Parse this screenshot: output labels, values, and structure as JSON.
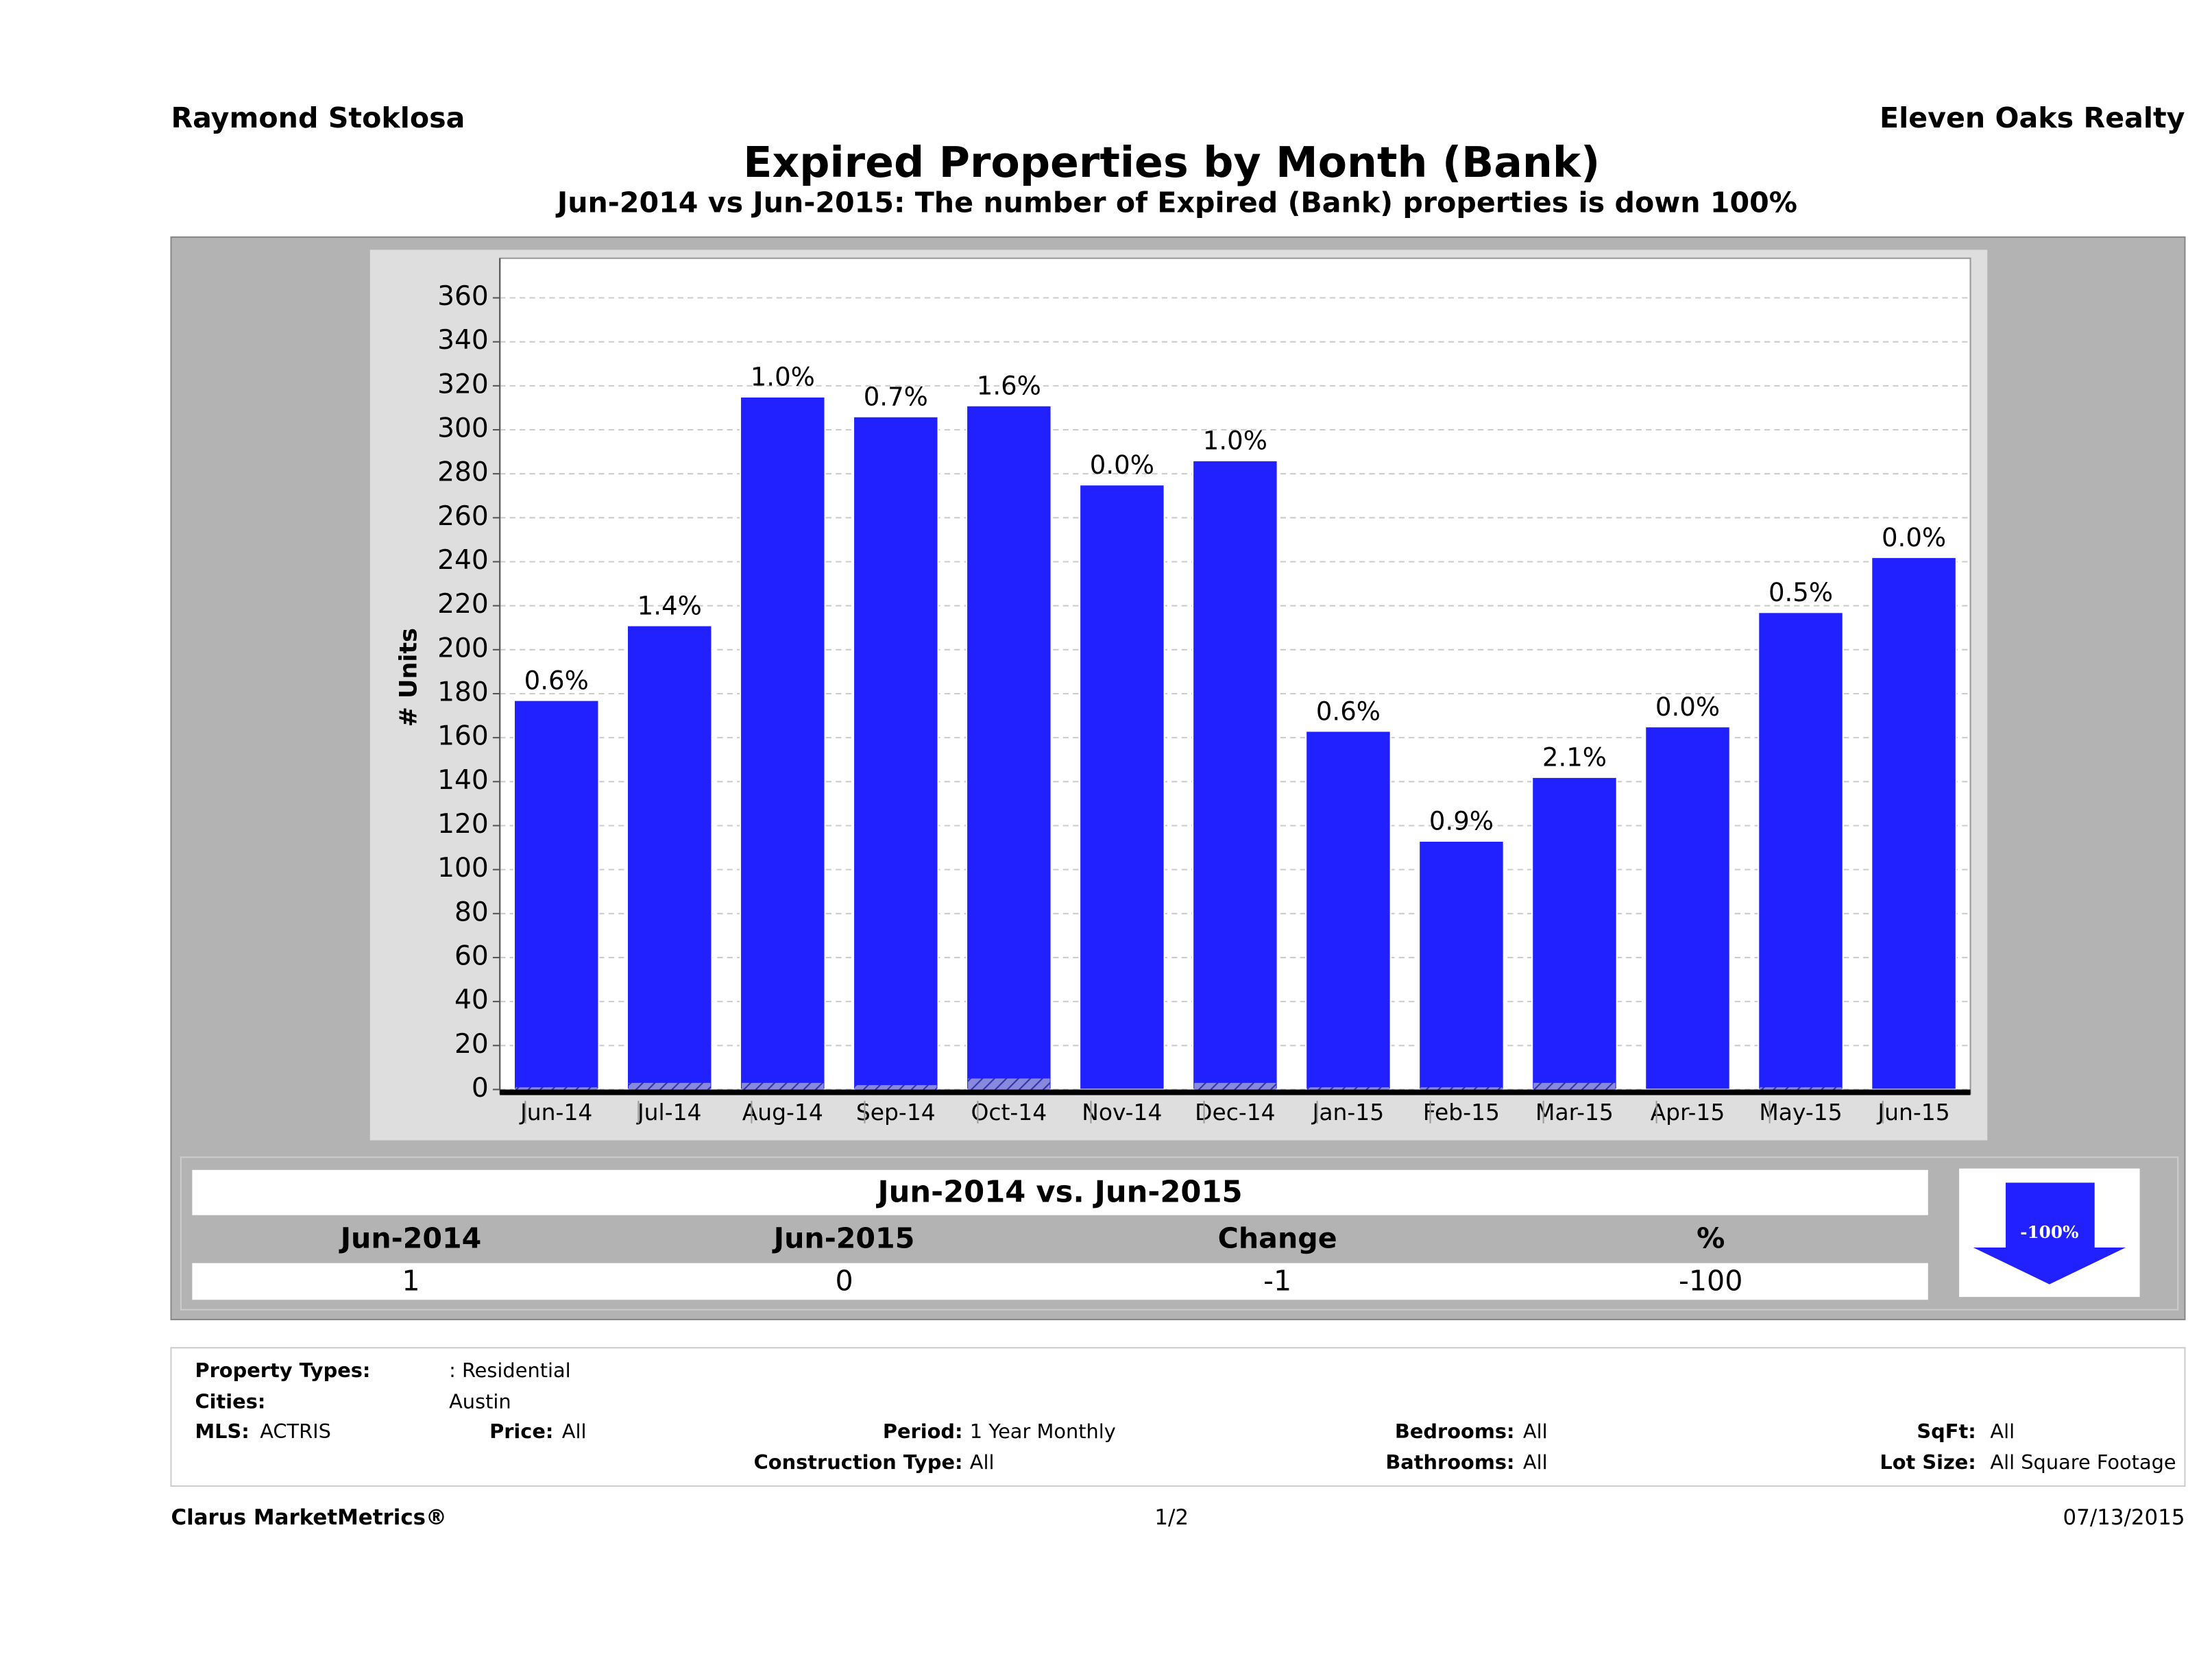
{
  "header": {
    "agent": "Raymond Stoklosa",
    "company": "Eleven Oaks Realty"
  },
  "chart_data": {
    "type": "bar",
    "title": "Expired Properties by Month (Bank)",
    "subtitle": "Jun-2014 vs Jun-2015: The number of Expired (Bank)  properties is down 100%",
    "y_label": "# Units",
    "categories": [
      "Jun-14",
      "Jul-14",
      "Aug-14",
      "Sep-14",
      "Oct-14",
      "Nov-14",
      "Dec-14",
      "Jan-15",
      "Feb-15",
      "Mar-15",
      "Apr-15",
      "May-15",
      "Jun-15"
    ],
    "series": [
      {
        "color": "#2121ff",
        "values": [
          177,
          211,
          315,
          306,
          311,
          275,
          286,
          163,
          113,
          142,
          165,
          217,
          242
        ],
        "data_labels": [
          "0.6%",
          "1.4%",
          "1.0%",
          "0.7%",
          "1.6%",
          "0.0%",
          "1.0%",
          "0.6%",
          "0.9%",
          "2.1%",
          "0.0%",
          "0.5%",
          "0.0%"
        ]
      },
      {
        "color": "#6a6ac8",
        "values": [
          1,
          3,
          3,
          2,
          5,
          0,
          3,
          1,
          1,
          3,
          0,
          1,
          0
        ]
      }
    ],
    "ylim": [
      0,
      378
    ],
    "yticks": [
      0,
      20,
      40,
      60,
      80,
      100,
      120,
      140,
      160,
      180,
      200,
      220,
      240,
      260,
      280,
      300,
      320,
      340,
      360
    ],
    "grid": true
  },
  "table": {
    "title": "Jun-2014 vs. Jun-2015",
    "headers": [
      "Jun-2014",
      "Jun-2015",
      "Change",
      "%"
    ],
    "values": [
      1,
      0,
      -1,
      -100
    ],
    "badge": "-100%"
  },
  "filters": {
    "property_types": [
      "Property Types:",
      ": Residential"
    ],
    "cities": [
      "Cities:",
      "Austin"
    ],
    "mls": [
      "MLS:",
      "ACTRIS"
    ],
    "price": [
      "Price:",
      "All"
    ],
    "period": [
      "Period:",
      "1 Year Monthly"
    ],
    "bedrooms": [
      "Bedrooms:",
      "All"
    ],
    "sqft": [
      "SqFt:",
      "All"
    ],
    "construction": [
      "Construction Type:",
      "All"
    ],
    "bathrooms": [
      "Bathrooms:",
      "All"
    ],
    "lot_size": [
      "Lot Size:",
      "All Square Footage"
    ]
  },
  "footer": {
    "brand": "Clarus MarketMetrics®",
    "page": "1/2",
    "date": "07/13/2015"
  }
}
